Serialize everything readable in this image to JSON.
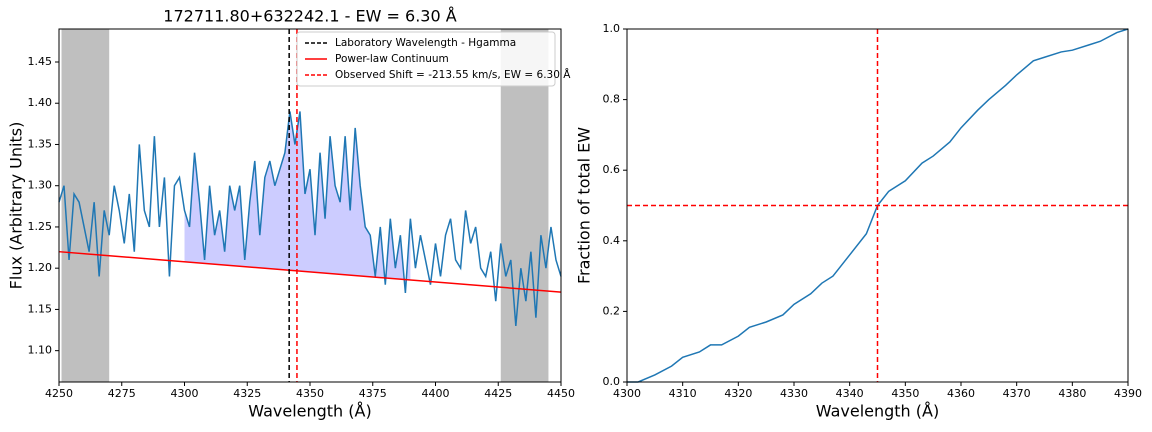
{
  "chart_data": [
    {
      "type": "line",
      "title": "172711.80+632242.1 - EW = 6.30 Å",
      "xlabel": "Wavelength (Å)",
      "ylabel": "Flux (Arbitrary Units)",
      "xlim": [
        4250,
        4450
      ],
      "ylim": [
        1.062,
        1.49
      ],
      "xticks": [
        4250,
        4275,
        4300,
        4325,
        4350,
        4375,
        4400,
        4425,
        4450
      ],
      "yticks": [
        {
          "value": 1.1,
          "label": "1.10"
        },
        {
          "value": 1.15,
          "label": "1.15"
        },
        {
          "value": 1.2,
          "label": "1.20"
        },
        {
          "value": 1.25,
          "label": "1.25"
        },
        {
          "value": 1.3,
          "label": "1.30"
        },
        {
          "value": 1.35,
          "label": "1.35"
        },
        {
          "value": 1.4,
          "label": "1.40"
        },
        {
          "value": 1.45,
          "label": "1.45"
        }
      ],
      "legend": "upper right",
      "spans": [
        [
          4251,
          4270
        ],
        [
          4426,
          4445
        ]
      ],
      "span_color": "#bfbfbf",
      "fill": {
        "from": 4300,
        "to": 4390,
        "color": "#ccccff"
      },
      "series": [
        {
          "color": "#1f77b4",
          "x": [
            4250,
            4252,
            4254,
            4256,
            4258,
            4260,
            4262,
            4264,
            4266,
            4268,
            4270,
            4272,
            4274,
            4276,
            4278,
            4280,
            4282,
            4284,
            4286,
            4288,
            4290,
            4292,
            4294,
            4296,
            4298,
            4300,
            4302,
            4304,
            4306,
            4308,
            4310,
            4312,
            4314,
            4316,
            4318,
            4320,
            4322,
            4324,
            4326,
            4328,
            4330,
            4332,
            4334,
            4336,
            4338,
            4340,
            4342,
            4344,
            4346,
            4348,
            4350,
            4352,
            4354,
            4356,
            4358,
            4360,
            4362,
            4364,
            4366,
            4368,
            4370,
            4372,
            4374,
            4376,
            4378,
            4380,
            4382,
            4384,
            4386,
            4388,
            4390,
            4392,
            4394,
            4396,
            4398,
            4400,
            4402,
            4404,
            4406,
            4408,
            4410,
            4412,
            4414,
            4416,
            4418,
            4420,
            4422,
            4424,
            4426,
            4428,
            4430,
            4432,
            4434,
            4436,
            4438,
            4440,
            4442,
            4444,
            4446,
            4448,
            4450
          ],
          "values": [
            1.28,
            1.3,
            1.21,
            1.29,
            1.28,
            1.25,
            1.22,
            1.28,
            1.19,
            1.27,
            1.24,
            1.3,
            1.27,
            1.23,
            1.29,
            1.22,
            1.35,
            1.27,
            1.25,
            1.36,
            1.25,
            1.31,
            1.19,
            1.3,
            1.31,
            1.27,
            1.25,
            1.34,
            1.28,
            1.21,
            1.3,
            1.24,
            1.27,
            1.22,
            1.3,
            1.27,
            1.3,
            1.21,
            1.28,
            1.33,
            1.24,
            1.31,
            1.33,
            1.3,
            1.32,
            1.34,
            1.39,
            1.35,
            1.39,
            1.29,
            1.32,
            1.24,
            1.34,
            1.26,
            1.36,
            1.3,
            1.28,
            1.36,
            1.27,
            1.37,
            1.3,
            1.25,
            1.24,
            1.19,
            1.25,
            1.18,
            1.26,
            1.2,
            1.24,
            1.17,
            1.26,
            1.2,
            1.24,
            1.21,
            1.18,
            1.23,
            1.19,
            1.24,
            1.26,
            1.21,
            1.2,
            1.27,
            1.23,
            1.25,
            1.2,
            1.19,
            1.22,
            1.16,
            1.23,
            1.19,
            1.21,
            1.13,
            1.2,
            1.16,
            1.22,
            1.14,
            1.24,
            1.2,
            1.25,
            1.21,
            1.19
          ]
        },
        {
          "name": "Power-law Continuum",
          "color": "#ff0000",
          "x": [
            4250,
            4450
          ],
          "values": [
            1.22,
            1.171
          ]
        }
      ],
      "vlines": [
        {
          "name": "Laboratory Wavelength - Hgamma",
          "x": 4341.7,
          "color": "#000000"
        },
        {
          "name": "Observed Shift = -213.55 km/s, EW = 6.30 Å",
          "x": 4344.8,
          "color": "#ff0000"
        }
      ]
    },
    {
      "type": "line",
      "xlabel": "Wavelength (Å)",
      "ylabel": "Fraction of total EW",
      "xlim": [
        4300,
        4390
      ],
      "ylim": [
        0,
        1
      ],
      "xticks": [
        4300,
        4310,
        4320,
        4330,
        4340,
        4350,
        4360,
        4370,
        4380,
        4390
      ],
      "yticks": [
        {
          "value": 0,
          "label": "0.0"
        },
        {
          "value": 0.2,
          "label": "0.2"
        },
        {
          "value": 0.4,
          "label": "0.4"
        },
        {
          "value": 0.6,
          "label": "0.6"
        },
        {
          "value": 0.8,
          "label": "0.8"
        },
        {
          "value": 1,
          "label": "1.0"
        }
      ],
      "series": [
        {
          "color": "#1f77b4",
          "x": [
            4300,
            4302,
            4305,
            4308,
            4310,
            4313,
            4315,
            4317,
            4320,
            4322,
            4325,
            4328,
            4330,
            4333,
            4335,
            4337,
            4340,
            4343,
            4345,
            4347,
            4350,
            4353,
            4355,
            4358,
            4360,
            4363,
            4365,
            4368,
            4370,
            4373,
            4375,
            4378,
            4380,
            4383,
            4385,
            4388,
            4390
          ],
          "values": [
            0,
            0,
            0.02,
            0.045,
            0.07,
            0.085,
            0.105,
            0.105,
            0.13,
            0.155,
            0.17,
            0.19,
            0.22,
            0.25,
            0.28,
            0.3,
            0.36,
            0.42,
            0.5,
            0.54,
            0.57,
            0.62,
            0.64,
            0.68,
            0.72,
            0.77,
            0.8,
            0.84,
            0.87,
            0.91,
            0.92,
            0.935,
            0.94,
            0.955,
            0.965,
            0.99,
            1.0
          ]
        }
      ],
      "vlines": [
        {
          "x": 4345,
          "color": "#ff0000"
        }
      ],
      "hlines": [
        {
          "y": 0.5,
          "color": "#ff0000"
        }
      ]
    }
  ]
}
